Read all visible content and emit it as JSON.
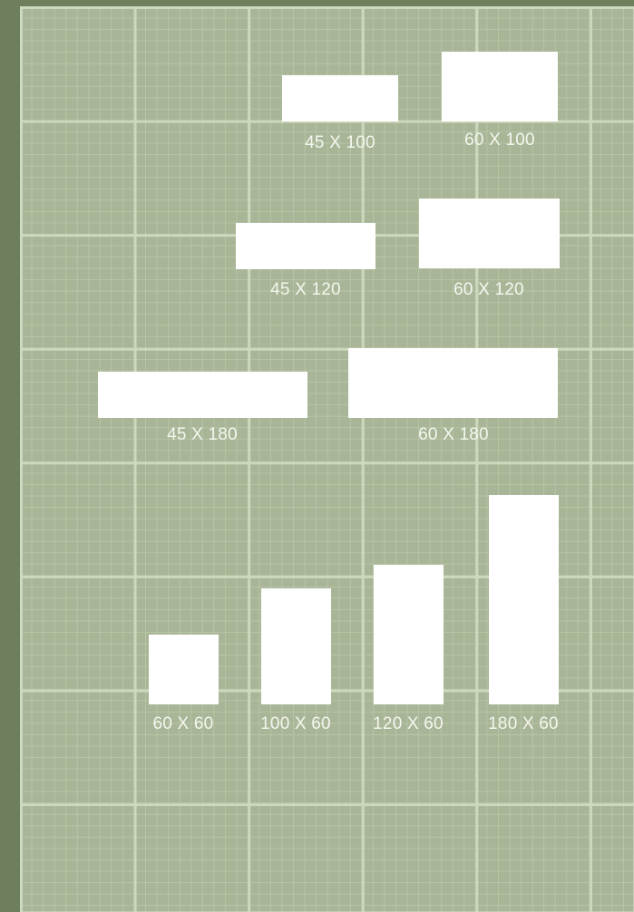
{
  "rugs": [
    {
      "id": "45x100",
      "label": "45 X 100"
    },
    {
      "id": "60x100",
      "label": "60 X 100"
    },
    {
      "id": "45x120",
      "label": "45 X 120"
    },
    {
      "id": "60x120",
      "label": "60 X 120"
    },
    {
      "id": "45x180",
      "label": "45 X 180"
    },
    {
      "id": "60x180",
      "label": "60 X 180"
    },
    {
      "id": "60x60",
      "label": "60 X 60"
    },
    {
      "id": "100x60",
      "label": "100 X 60"
    },
    {
      "id": "120x60",
      "label": "120 X 60"
    },
    {
      "id": "180x60",
      "label": "180 X 60"
    }
  ],
  "colors": {
    "frame": "#6e7f5e",
    "board": "#a8b596",
    "grid": "#cedabe",
    "rug": "#ffffff",
    "label": "#f4f6ef"
  }
}
